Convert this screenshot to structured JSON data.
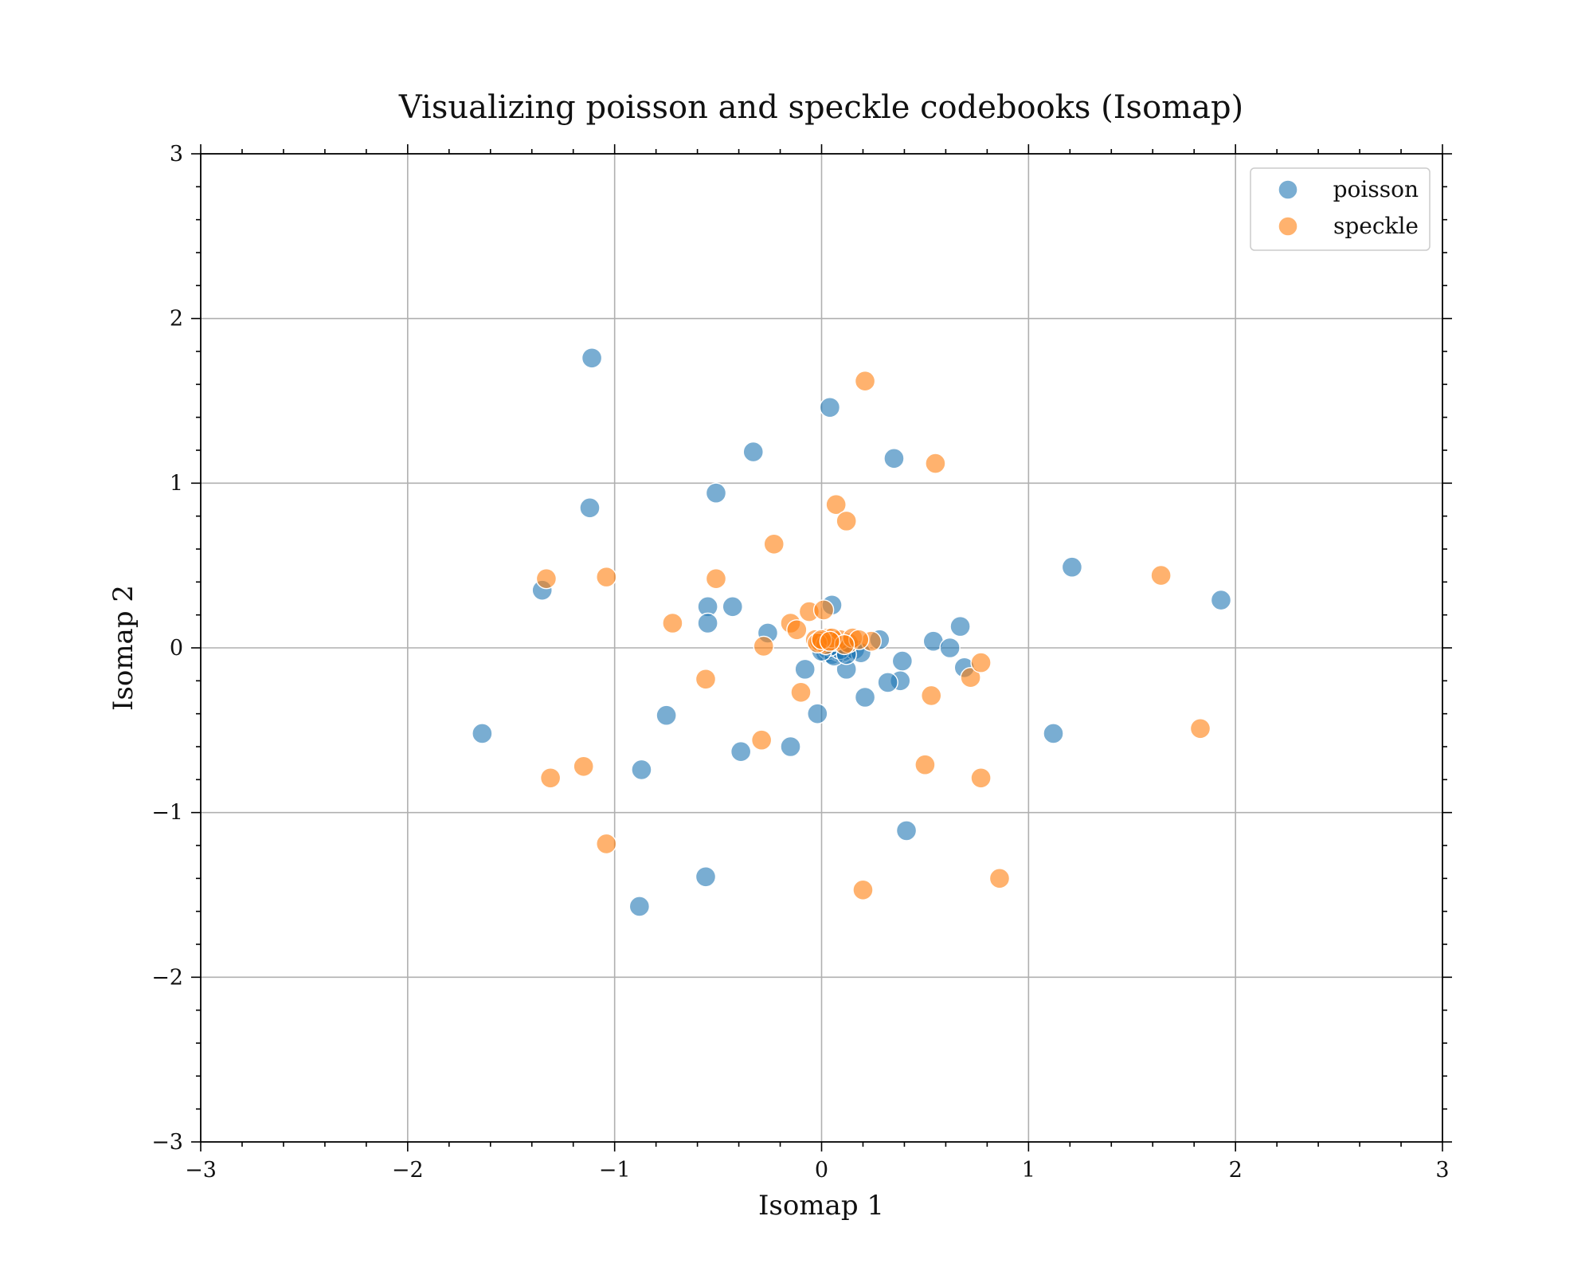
{
  "chart_data": {
    "type": "scatter",
    "title": "Visualizing poisson and speckle codebooks (Isomap)",
    "xlabel": "Isomap 1",
    "ylabel": "Isomap 2",
    "xlim": [
      -3,
      3
    ],
    "ylim": [
      -3,
      3
    ],
    "xticks": [
      -3,
      -2,
      -1,
      0,
      1,
      2,
      3
    ],
    "yticks": [
      -3,
      -2,
      -1,
      0,
      1,
      2,
      3
    ],
    "xtick_labels": [
      "−3",
      "−2",
      "−1",
      "0",
      "1",
      "2",
      "3"
    ],
    "ytick_labels": [
      "−3",
      "−2",
      "−1",
      "0",
      "1",
      "2",
      "3"
    ],
    "grid": true,
    "legend_position": "top-right",
    "series": [
      {
        "name": "poisson",
        "color": "#1f77b4",
        "alpha": 0.6,
        "points": [
          [
            -1.11,
            1.76
          ],
          [
            0.04,
            1.46
          ],
          [
            -0.33,
            1.19
          ],
          [
            0.35,
            1.15
          ],
          [
            -1.12,
            0.85
          ],
          [
            -0.51,
            0.94
          ],
          [
            -1.35,
            0.35
          ],
          [
            1.21,
            0.49
          ],
          [
            1.93,
            0.29
          ],
          [
            -0.55,
            0.25
          ],
          [
            -0.55,
            0.15
          ],
          [
            -0.43,
            0.25
          ],
          [
            -0.26,
            0.09
          ],
          [
            0.05,
            0.26
          ],
          [
            0.28,
            0.05
          ],
          [
            0.54,
            0.04
          ],
          [
            0.67,
            0.13
          ],
          [
            0.62,
            0.0
          ],
          [
            0.39,
            -0.08
          ],
          [
            0.69,
            -0.12
          ],
          [
            0.38,
            -0.2
          ],
          [
            0.32,
            -0.21
          ],
          [
            0.21,
            -0.3
          ],
          [
            0.12,
            -0.13
          ],
          [
            -0.08,
            -0.13
          ],
          [
            -0.02,
            -0.4
          ],
          [
            -1.64,
            -0.52
          ],
          [
            -0.75,
            -0.41
          ],
          [
            -0.39,
            -0.63
          ],
          [
            -0.15,
            -0.6
          ],
          [
            -0.87,
            -0.74
          ],
          [
            1.12,
            -0.52
          ],
          [
            0.41,
            -1.11
          ],
          [
            -0.56,
            -1.39
          ],
          [
            -0.88,
            -1.57
          ],
          [
            0.02,
            -0.03
          ],
          [
            0.05,
            -0.04
          ],
          [
            0.08,
            -0.02
          ],
          [
            0.1,
            -0.03
          ],
          [
            0.13,
            -0.01
          ],
          [
            0.03,
            -0.01
          ],
          [
            0.07,
            0.0
          ],
          [
            0.11,
            -0.02
          ],
          [
            0.16,
            -0.01
          ],
          [
            0.19,
            -0.03
          ],
          [
            0.06,
            -0.05
          ],
          [
            0.09,
            -0.01
          ],
          [
            0.04,
            0.01
          ],
          [
            0.12,
            -0.04
          ],
          [
            0.0,
            -0.02
          ]
        ]
      },
      {
        "name": "speckle",
        "color": "#ff7f0e",
        "alpha": 0.6,
        "points": [
          [
            0.21,
            1.62
          ],
          [
            0.55,
            1.12
          ],
          [
            0.07,
            0.87
          ],
          [
            0.12,
            0.77
          ],
          [
            -0.23,
            0.63
          ],
          [
            -1.33,
            0.42
          ],
          [
            -1.04,
            0.43
          ],
          [
            -0.51,
            0.42
          ],
          [
            -0.72,
            0.15
          ],
          [
            1.64,
            0.44
          ],
          [
            -0.15,
            0.15
          ],
          [
            -0.12,
            0.11
          ],
          [
            -0.06,
            0.22
          ],
          [
            0.01,
            0.23
          ],
          [
            -0.28,
            0.01
          ],
          [
            -0.56,
            -0.19
          ],
          [
            -0.1,
            -0.27
          ],
          [
            0.53,
            -0.29
          ],
          [
            0.72,
            -0.18
          ],
          [
            0.77,
            -0.09
          ],
          [
            1.83,
            -0.49
          ],
          [
            -0.29,
            -0.56
          ],
          [
            0.5,
            -0.71
          ],
          [
            0.77,
            -0.79
          ],
          [
            -1.31,
            -0.79
          ],
          [
            -1.15,
            -0.72
          ],
          [
            -1.04,
            -1.19
          ],
          [
            0.86,
            -1.4
          ],
          [
            0.2,
            -1.47
          ],
          [
            0.24,
            0.04
          ],
          [
            -0.03,
            0.05
          ],
          [
            0.0,
            0.03
          ],
          [
            0.03,
            0.06
          ],
          [
            0.06,
            0.04
          ],
          [
            0.09,
            0.05
          ],
          [
            0.13,
            0.03
          ],
          [
            0.15,
            0.06
          ],
          [
            0.18,
            0.05
          ],
          [
            -0.01,
            0.04
          ],
          [
            0.02,
            0.02
          ],
          [
            0.05,
            0.06
          ],
          [
            0.11,
            0.02
          ],
          [
            -0.02,
            0.03
          ],
          [
            0.0,
            0.05
          ],
          [
            0.04,
            0.04
          ]
        ]
      }
    ]
  }
}
